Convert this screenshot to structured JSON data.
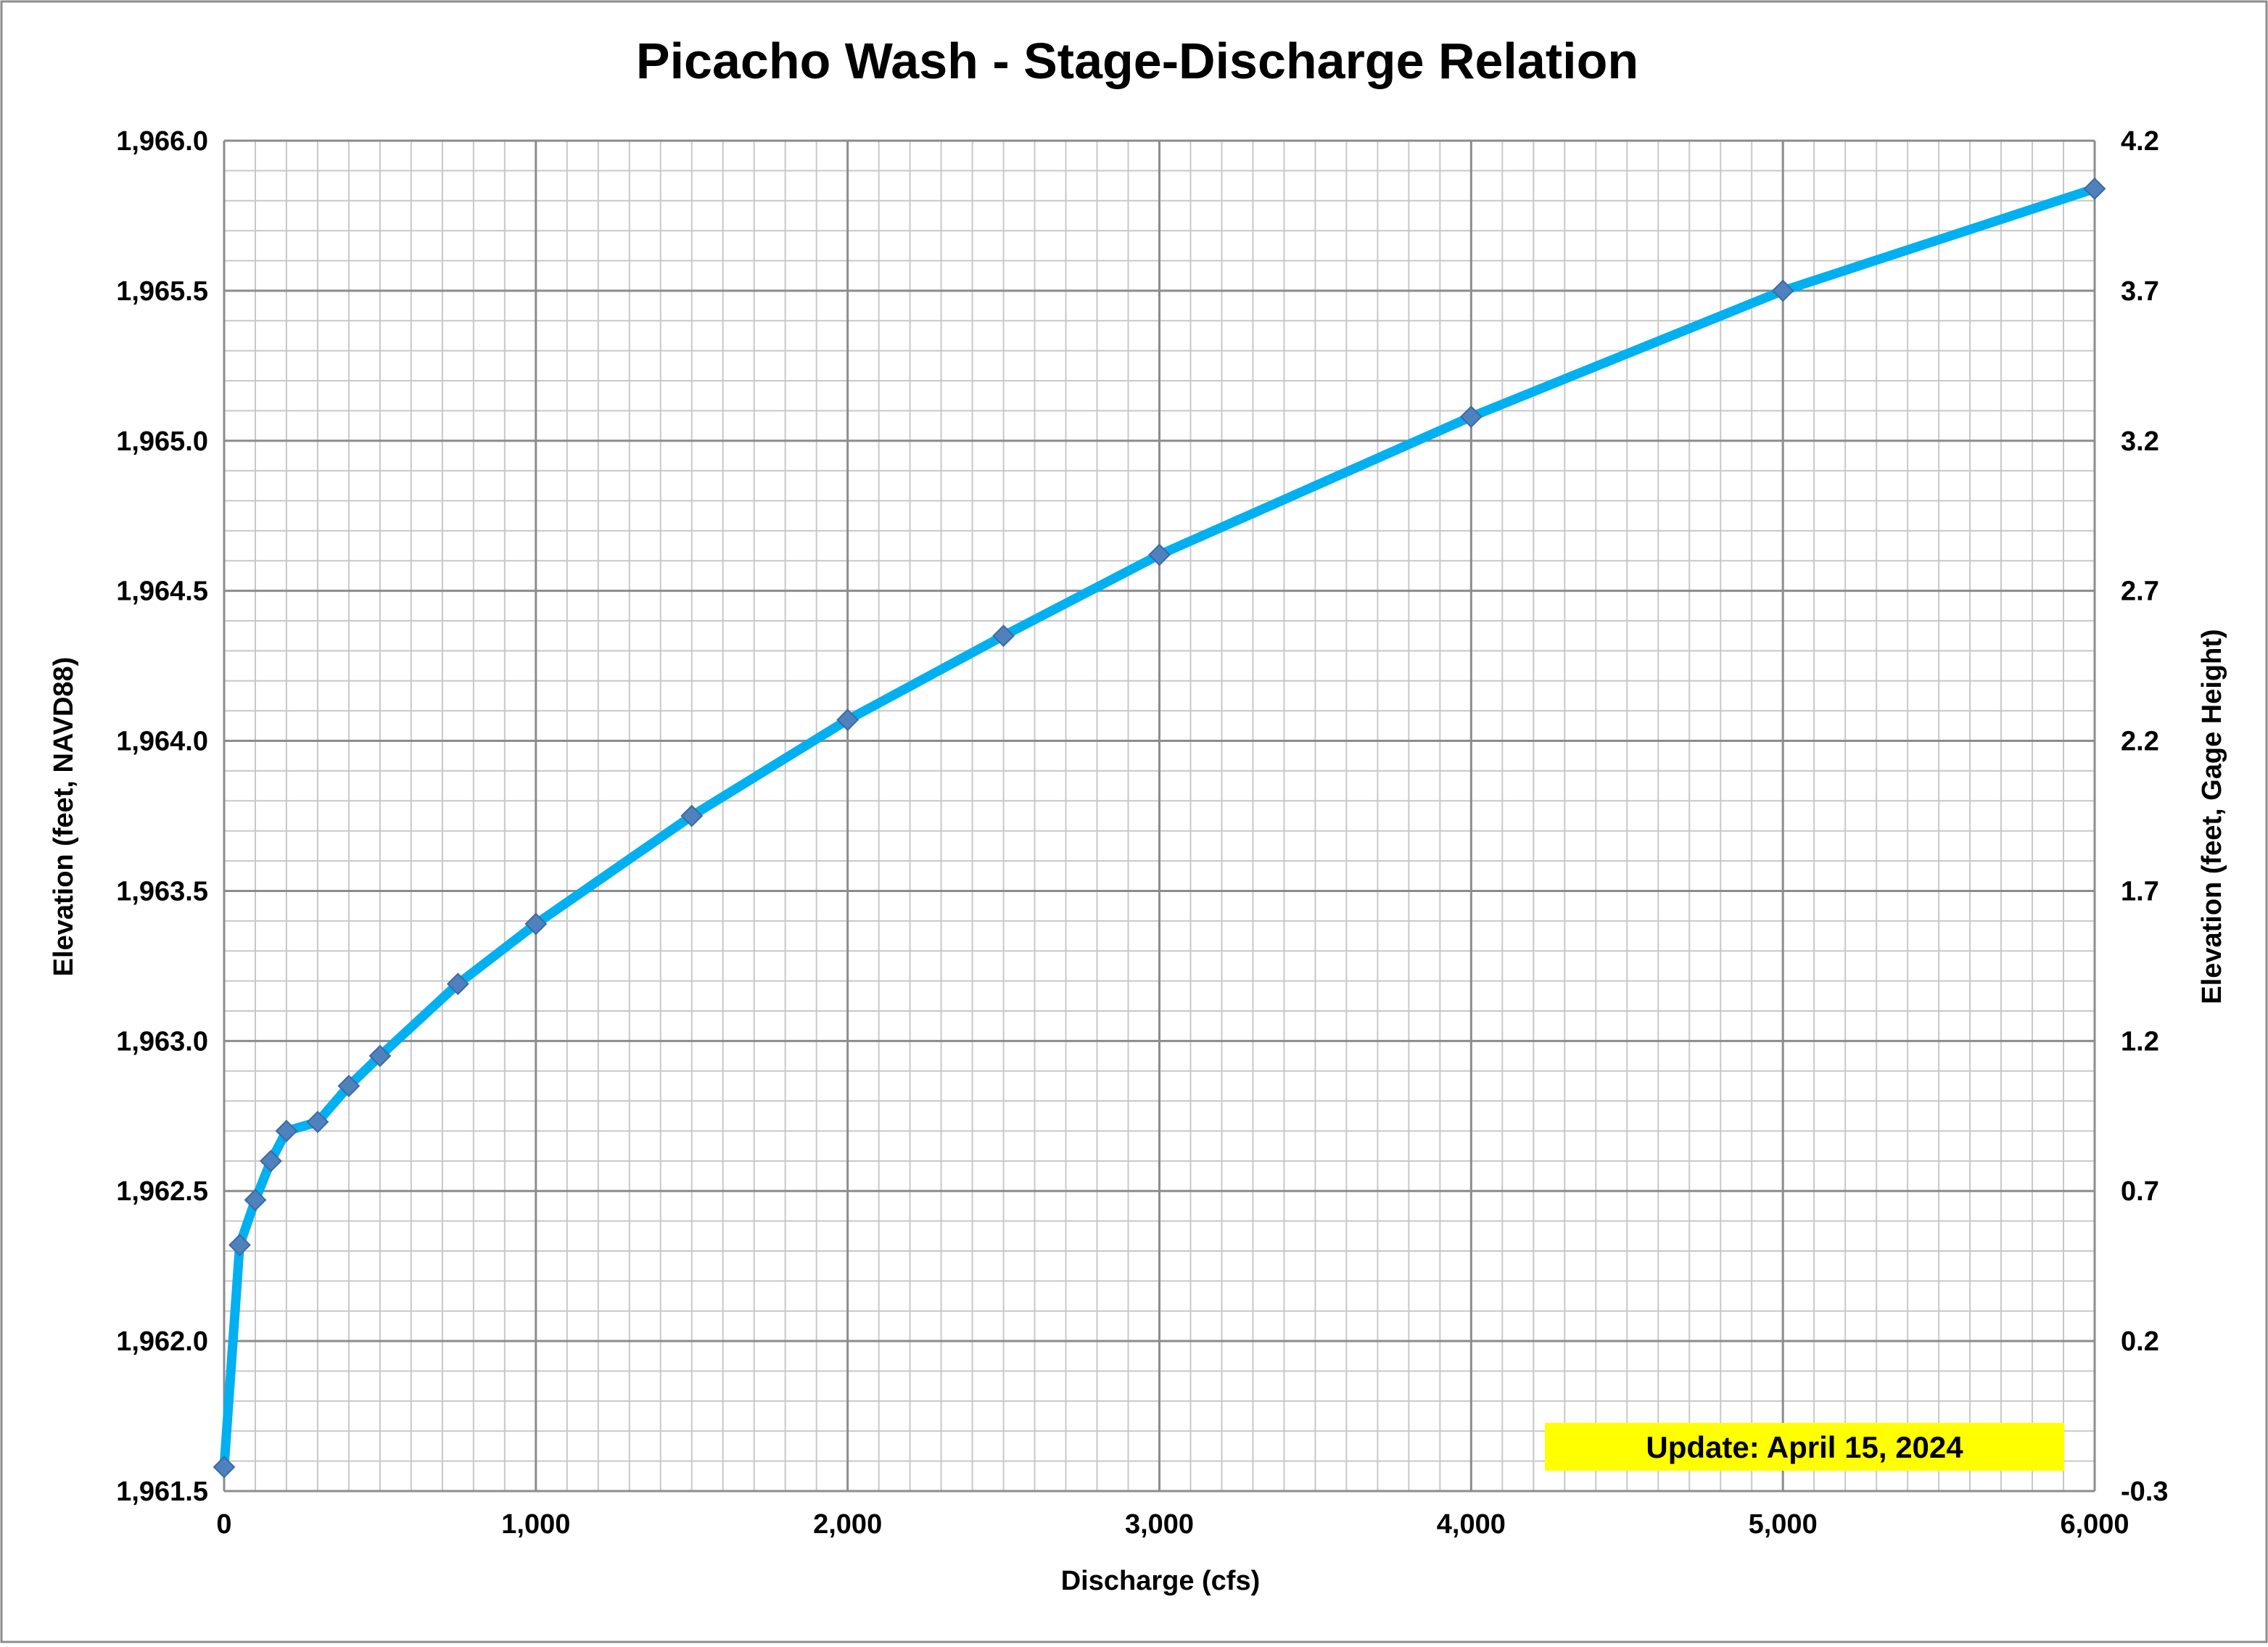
{
  "chart_data": {
    "type": "line",
    "title": "Picacho Wash - Stage-Discharge Relation",
    "xlabel": "Discharge (cfs)",
    "ylabel": "Elevation (feet, NAVD88)",
    "y2label": "Elevation (feet, Gage Height)",
    "xlim": [
      0,
      6000
    ],
    "ylim": [
      1961.5,
      1966.0
    ],
    "y2lim": [
      -0.3,
      4.2
    ],
    "x_ticks": [
      0,
      1000,
      2000,
      3000,
      4000,
      5000,
      6000
    ],
    "x_tick_labels": [
      "0",
      "1,000",
      "2,000",
      "3,000",
      "4,000",
      "5,000",
      "6,000"
    ],
    "y_ticks": [
      1961.5,
      1962.0,
      1962.5,
      1963.0,
      1963.5,
      1964.0,
      1964.5,
      1965.0,
      1965.5,
      1966.0
    ],
    "y_tick_labels": [
      "1,961.5",
      "1,962.0",
      "1,962.5",
      "1,963.0",
      "1,963.5",
      "1,964.0",
      "1,964.5",
      "1,965.0",
      "1,965.5",
      "1,966.0"
    ],
    "y2_tick_labels": [
      "-0.3",
      "0.2",
      "0.7",
      "1.2",
      "1.7",
      "2.2",
      "2.7",
      "3.2",
      "3.7",
      "4.2"
    ],
    "grid": true,
    "series": [
      {
        "x": [
          0,
          50,
          100,
          150,
          200,
          300,
          400,
          500,
          750,
          1000,
          1500,
          2000,
          2500,
          3000,
          4000,
          5000,
          6000
        ],
        "y": [
          1961.58,
          1962.32,
          1962.47,
          1962.6,
          1962.7,
          1962.73,
          1962.85,
          1962.95,
          1963.19,
          1963.39,
          1963.75,
          1964.07,
          1964.35,
          1964.62,
          1965.08,
          1965.5,
          1965.84
        ],
        "color": "#00B0F0",
        "marker_color": "#4F81BD"
      }
    ],
    "annotation": {
      "text": "Update: April 15, 2024",
      "background": "#FFFF00",
      "placement": "bottom-right"
    }
  }
}
